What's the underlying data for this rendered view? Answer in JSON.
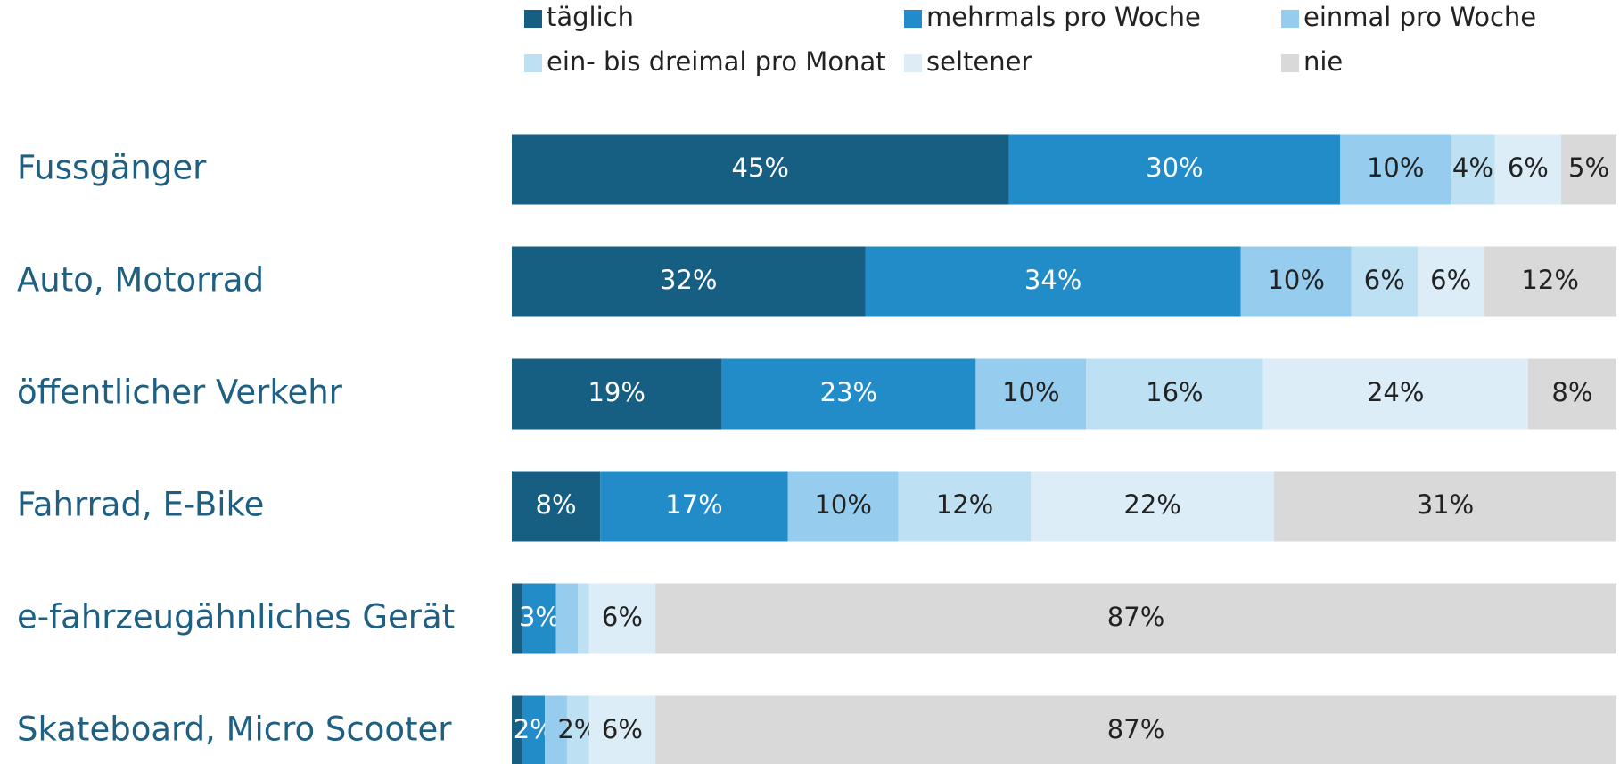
{
  "chart_data": {
    "type": "stacked-barh",
    "categories": [
      "Fussgänger",
      "Auto, Motorrad",
      "öffentlicher Verkehr",
      "Fahrrad, E-Bike",
      "e-fahrzeugähnliches Gerät",
      "Skateboard, Micro Scooter"
    ],
    "xlim": [
      0,
      100
    ],
    "series": [
      {
        "name": "täglich",
        "color": "#175f82",
        "label_color": "#ffffff",
        "values": [
          45,
          32,
          19,
          8,
          1,
          1
        ],
        "value_labels": [
          "45%",
          "32%",
          "19%",
          "8%",
          null,
          null
        ]
      },
      {
        "name": "mehrmals pro Woche",
        "color": "#228cc8",
        "label_color": "#ffffff",
        "values": [
          30,
          34,
          23,
          17,
          3,
          2
        ],
        "value_labels": [
          "30%",
          "34%",
          "23%",
          "17%",
          "3%",
          "2%"
        ]
      },
      {
        "name": "einmal pro Woche",
        "color": "#96cdee",
        "label_color": "#222222",
        "values": [
          10,
          10,
          10,
          10,
          2,
          2
        ],
        "value_labels": [
          "10%",
          "10%",
          "10%",
          "10%",
          null,
          null
        ]
      },
      {
        "name": "ein- bis dreimal pro Monat",
        "color": "#bde0f3",
        "label_color": "#222222",
        "values": [
          4,
          6,
          16,
          12,
          1,
          2
        ],
        "value_labels": [
          "4%",
          "6%",
          "16%",
          "12%",
          null,
          "2%"
        ]
      },
      {
        "name": "seltener",
        "color": "#dcedf8",
        "label_color": "#222222",
        "values": [
          6,
          6,
          24,
          22,
          6,
          6
        ],
        "value_labels": [
          "6%",
          "6%",
          "24%",
          "22%",
          "6%",
          "6%"
        ]
      },
      {
        "name": "nie",
        "color": "#d9d9d9",
        "label_color": "#222222",
        "values": [
          5,
          12,
          8,
          31,
          87,
          87
        ],
        "value_labels": [
          "5%",
          "12%",
          "8%",
          "31%",
          "87%",
          "87%"
        ]
      }
    ]
  }
}
